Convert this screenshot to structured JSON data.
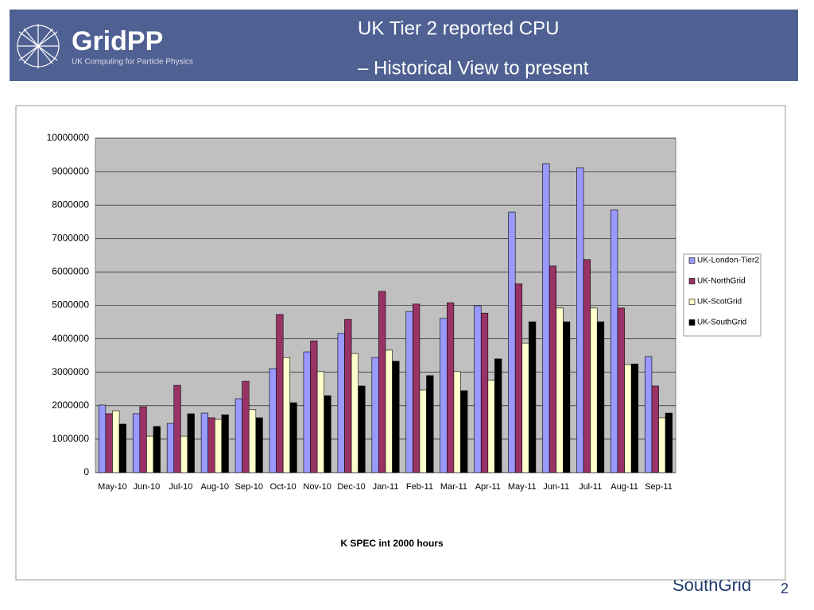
{
  "header": {
    "logo": "GridPP",
    "logo_subtitle": "UK Computing for Particle Physics",
    "title_lines": [
      "UK Tier 2 reported CPU",
      "– Historical View to present"
    ]
  },
  "footer": {
    "brand": "SouthGrid",
    "page": "2"
  },
  "chart_data": {
    "type": "bar",
    "xlabel": "K SPEC int 2000 hours",
    "categories": [
      "May-10",
      "Jun-10",
      "Jul-10",
      "Aug-10",
      "Sep-10",
      "Oct-10",
      "Nov-10",
      "Dec-10",
      "Jan-11",
      "Feb-11",
      "Mar-11",
      "Apr-11",
      "May-11",
      "Jun-11",
      "Jul-11",
      "Aug-11",
      "Sep-11"
    ],
    "series": [
      {
        "name": "UK-London-Tier2",
        "color": "#9999ff",
        "values": [
          2020000,
          1760000,
          1470000,
          1780000,
          2210000,
          3110000,
          3610000,
          4160000,
          3440000,
          4820000,
          4610000,
          4990000,
          7790000,
          9240000,
          9120000,
          7860000,
          3470000
        ]
      },
      {
        "name": "UK-NorthGrid",
        "color": "#993366",
        "values": [
          1760000,
          1970000,
          2610000,
          1640000,
          2730000,
          4730000,
          3940000,
          4580000,
          5420000,
          5040000,
          5080000,
          4770000,
          5650000,
          6180000,
          6370000,
          4920000,
          2590000
        ]
      },
      {
        "name": "UK-ScotGrid",
        "color": "#ffffcc",
        "values": [
          1850000,
          1090000,
          1090000,
          1590000,
          1880000,
          3440000,
          3020000,
          3560000,
          3660000,
          2470000,
          3020000,
          2760000,
          3870000,
          4920000,
          4920000,
          3230000,
          1640000
        ]
      },
      {
        "name": "UK-SouthGrid",
        "color": "#000000",
        "values": [
          1450000,
          1380000,
          1760000,
          1730000,
          1640000,
          2090000,
          2300000,
          2590000,
          3330000,
          2900000,
          2450000,
          3400000,
          4510000,
          4510000,
          4510000,
          3250000,
          1780000
        ]
      }
    ],
    "ylim": [
      0,
      10000000
    ],
    "yticks": [
      0,
      1000000,
      2000000,
      3000000,
      4000000,
      5000000,
      6000000,
      7000000,
      8000000,
      9000000,
      10000000
    ],
    "grid": true,
    "legend": "right",
    "plot_background": "#c0c0c0"
  }
}
